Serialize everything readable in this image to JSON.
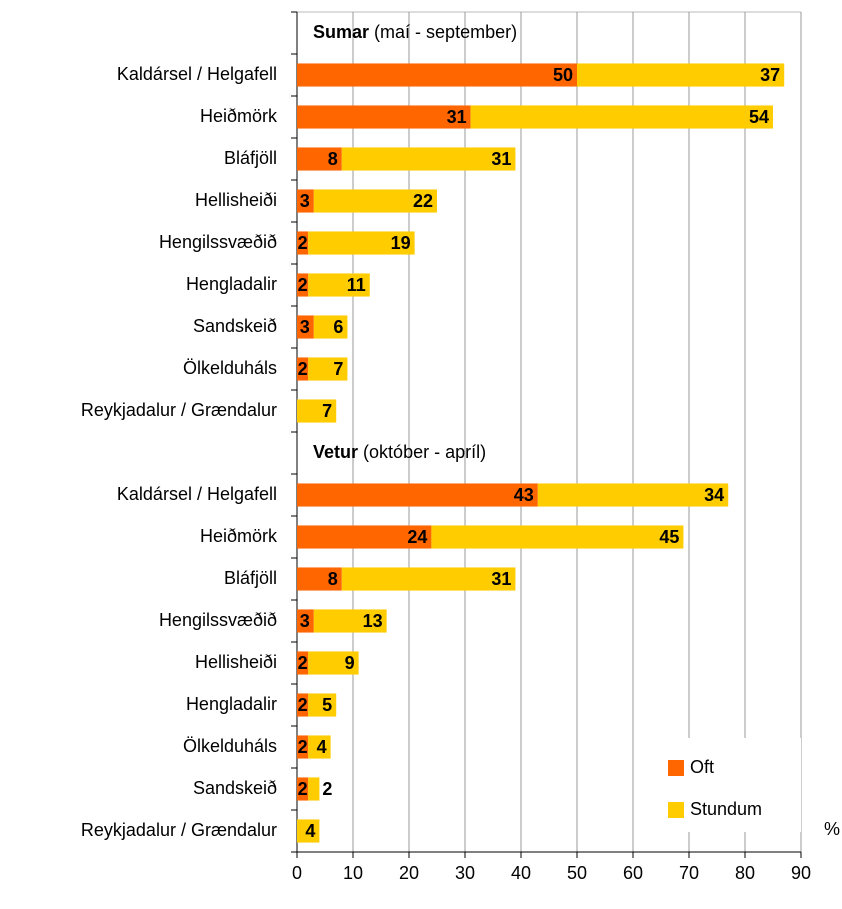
{
  "chart_data": {
    "type": "stacked-barh",
    "categories": [
      null,
      "Kaldársel / Helgafell",
      "Heiðmörk",
      "Bláfjöll",
      "Hellisheiði",
      "Hengilssvæðið",
      "Hengladalir",
      "Sandskeið",
      "Ölkelduháls",
      "Reykjadalur / Grændalur",
      null,
      "Kaldársel / Helgafell",
      "Heiðmörk",
      "Bláfjöll",
      "Hengilssvæðið",
      "Hellisheiði",
      "Hengladalir",
      "Ölkelduháls",
      "Sandskeið",
      "Reykjadalur / Grændalur"
    ],
    "series": [
      {
        "name": "Oft",
        "color": "#ff6600",
        "values": [
          null,
          50,
          31,
          8,
          3,
          2,
          2,
          3,
          2,
          null,
          null,
          43,
          24,
          8,
          3,
          2,
          2,
          2,
          2,
          null
        ]
      },
      {
        "name": "Stundum",
        "color": "#ffcc00",
        "values": [
          null,
          37,
          54,
          31,
          22,
          19,
          11,
          6,
          7,
          7,
          null,
          34,
          45,
          31,
          13,
          9,
          5,
          4,
          2,
          4
        ]
      }
    ],
    "annotations": [
      {
        "bold": "Sumar",
        "text": "(maí - september)",
        "row": 0
      },
      {
        "bold": "Vetur",
        "text": "(október - apríl)",
        "row": 10
      }
    ],
    "xlabel": "%",
    "xlim": [
      0,
      90
    ],
    "xticks": [
      0,
      10,
      20,
      30,
      40,
      50,
      60,
      70,
      80,
      90
    ],
    "grid": true,
    "legend": "lower right"
  }
}
